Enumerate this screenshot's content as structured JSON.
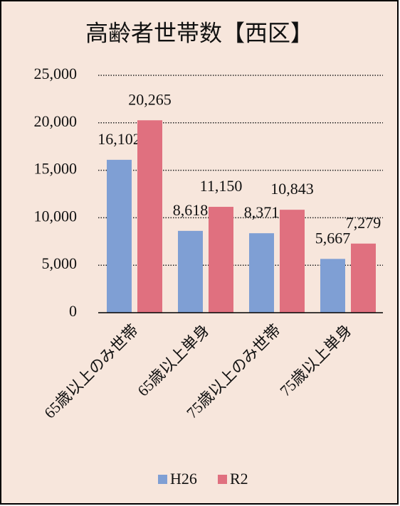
{
  "chart_data": {
    "type": "bar",
    "title": "高齢者世帯数【西区】",
    "categories": [
      "65歳以上のみ世帯",
      "65歳以上単身",
      "75歳以上のみ世帯",
      "75歳以上単身"
    ],
    "series": [
      {
        "name": "H26",
        "color": "#7f9fd4",
        "values": [
          16102,
          8618,
          8371,
          5667
        ],
        "value_labels": [
          "16,102",
          "8,618",
          "8,371",
          "5,667"
        ]
      },
      {
        "name": "R2",
        "color": "#e0707f",
        "values": [
          20265,
          11150,
          10843,
          7279
        ],
        "value_labels": [
          "20,265",
          "11,150",
          "10,843",
          "7,279"
        ]
      }
    ],
    "ylim": [
      0,
      25000
    ],
    "yticks": [
      0,
      {
        "value": 5000,
        "label": "5,000"
      },
      {
        "value": 10000,
        "label": "10,000"
      },
      {
        "value": 15000,
        "label": "15,000"
      },
      {
        "value": 20000,
        "label": "20,000"
      },
      {
        "value": 25000,
        "label": "25,000"
      }
    ],
    "grid": true,
    "legend": "bottom"
  }
}
